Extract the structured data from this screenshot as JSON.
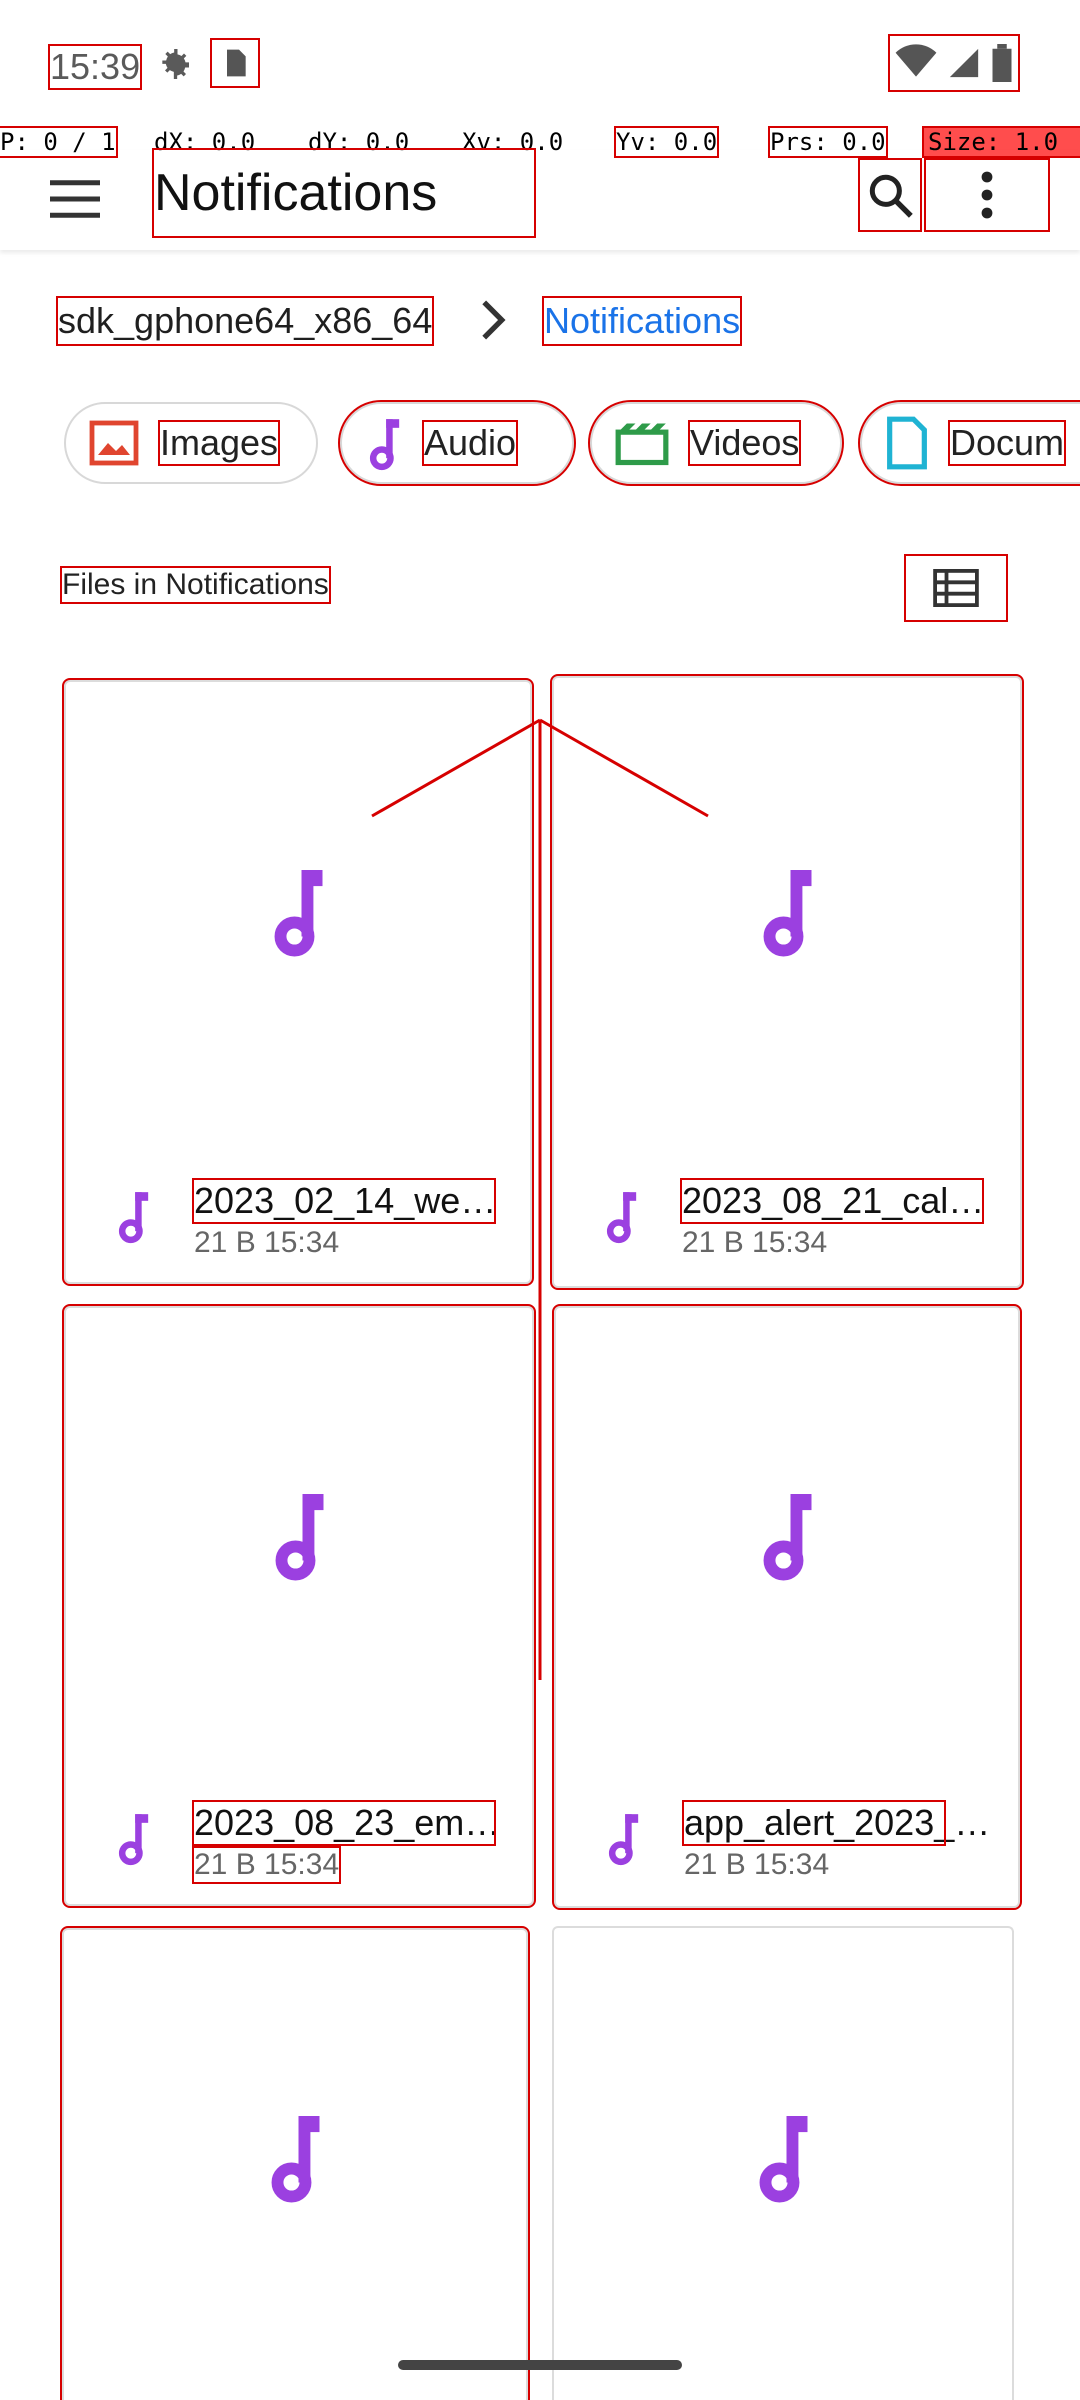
{
  "status_bar": {
    "time": "15:39"
  },
  "pointer_info": {
    "p": "P: 0 / 1",
    "dx": "dX: 0.0",
    "dy": "dY: 0.0",
    "xv": "Xv: 0.0",
    "yv": "Yv: 0.0",
    "prs": "Prs: 0.0",
    "size": "Size: 1.0"
  },
  "app_bar": {
    "title": "Notifications"
  },
  "breadcrumb": {
    "root": "sdk_gphone64_x86_64",
    "current": "Notifications"
  },
  "filters": [
    {
      "label": "Images",
      "icon": "image-icon",
      "color": "#e0452f"
    },
    {
      "label": "Audio",
      "icon": "music-note-icon",
      "color": "#9b40e0"
    },
    {
      "label": "Videos",
      "icon": "video-icon",
      "color": "#2e9b49"
    },
    {
      "label": "Docum",
      "icon": "document-icon",
      "color": "#1fb3d3"
    }
  ],
  "section": {
    "label": "Files in Notifications"
  },
  "files": [
    {
      "name": "2023_02_14_we…",
      "date": "21 В 15:34"
    },
    {
      "name": "2023_08_21_cal…",
      "date": "21 В 15:34"
    },
    {
      "name": "2023_08_23_em…",
      "date": "21 В 15:34"
    },
    {
      "name": "app_alert_2023_…",
      "date": "21 В 15:34"
    },
    {
      "name": "",
      "date": ""
    },
    {
      "name": "",
      "date": ""
    }
  ],
  "colors": {
    "accent": "#1a73e8",
    "audio": "#9b40e0",
    "overlay": "#d60000"
  }
}
